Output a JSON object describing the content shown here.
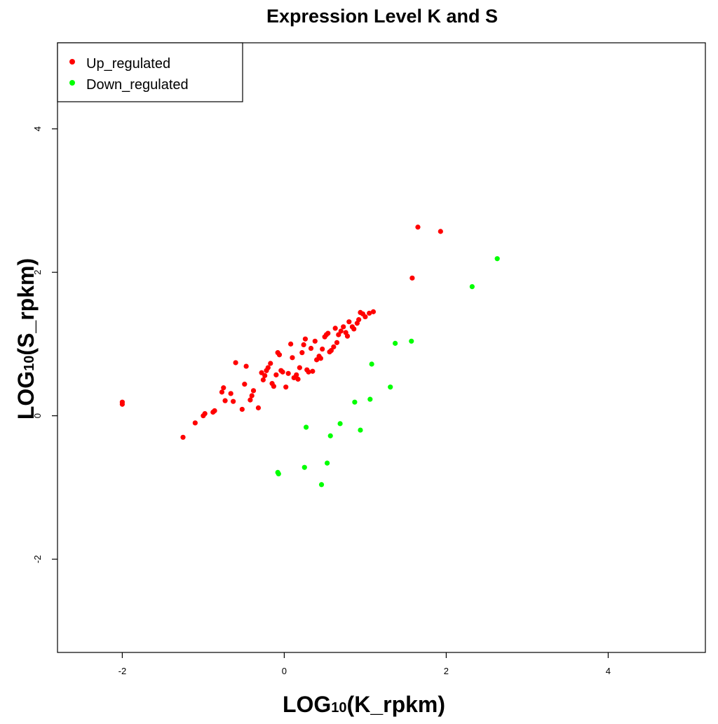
{
  "chart_data": {
    "type": "scatter",
    "title": "Expression Level K and S",
    "xlabel": {
      "prefix": "LOG",
      "sub": "10",
      "suffix": "(K_rpkm)"
    },
    "ylabel": {
      "prefix": "LOG",
      "sub": "10",
      "suffix": "(S_rpkm)"
    },
    "xlim": [
      -2.8,
      5.2
    ],
    "ylim": [
      -3.3,
      5.2
    ],
    "x_ticks": [
      -2,
      0,
      2,
      4
    ],
    "y_ticks": [
      -2,
      0,
      2,
      4
    ],
    "grid": false,
    "legend_position": "top-left",
    "series": [
      {
        "name": "Up_regulated",
        "color": "#ff0000",
        "points": [
          [
            -2.0,
            0.16
          ],
          [
            -2.0,
            0.19
          ],
          [
            -1.25,
            -0.3
          ],
          [
            -1.1,
            -0.1
          ],
          [
            -1.0,
            0.0
          ],
          [
            -0.98,
            0.03
          ],
          [
            -0.88,
            0.05
          ],
          [
            -0.86,
            0.07
          ],
          [
            -0.77,
            0.33
          ],
          [
            -0.75,
            0.39
          ],
          [
            -0.73,
            0.21
          ],
          [
            -0.66,
            0.31
          ],
          [
            -0.63,
            0.2
          ],
          [
            -0.6,
            0.74
          ],
          [
            -0.52,
            0.09
          ],
          [
            -0.49,
            0.44
          ],
          [
            -0.47,
            0.69
          ],
          [
            -0.42,
            0.22
          ],
          [
            -0.4,
            0.28
          ],
          [
            -0.38,
            0.35
          ],
          [
            -0.32,
            0.11
          ],
          [
            -0.28,
            0.6
          ],
          [
            -0.26,
            0.5
          ],
          [
            -0.24,
            0.56
          ],
          [
            -0.22,
            0.63
          ],
          [
            -0.2,
            0.67
          ],
          [
            -0.17,
            0.73
          ],
          [
            -0.15,
            0.45
          ],
          [
            -0.13,
            0.41
          ],
          [
            -0.1,
            0.57
          ],
          [
            -0.08,
            0.88
          ],
          [
            -0.06,
            0.85
          ],
          [
            -0.04,
            0.63
          ],
          [
            -0.02,
            0.61
          ],
          [
            0.02,
            0.4
          ],
          [
            0.05,
            0.59
          ],
          [
            0.08,
            1.0
          ],
          [
            0.1,
            0.81
          ],
          [
            0.12,
            0.53
          ],
          [
            0.15,
            0.57
          ],
          [
            0.17,
            0.51
          ],
          [
            0.19,
            0.67
          ],
          [
            0.22,
            0.88
          ],
          [
            0.24,
            0.99
          ],
          [
            0.26,
            1.07
          ],
          [
            0.28,
            0.64
          ],
          [
            0.3,
            0.61
          ],
          [
            0.33,
            0.94
          ],
          [
            0.35,
            0.62
          ],
          [
            0.38,
            1.04
          ],
          [
            0.4,
            0.78
          ],
          [
            0.43,
            0.83
          ],
          [
            0.45,
            0.8
          ],
          [
            0.47,
            0.93
          ],
          [
            0.5,
            1.1
          ],
          [
            0.52,
            1.13
          ],
          [
            0.54,
            1.15
          ],
          [
            0.56,
            0.89
          ],
          [
            0.58,
            0.91
          ],
          [
            0.61,
            0.96
          ],
          [
            0.63,
            1.22
          ],
          [
            0.65,
            1.02
          ],
          [
            0.67,
            1.13
          ],
          [
            0.7,
            1.18
          ],
          [
            0.73,
            1.24
          ],
          [
            0.76,
            1.16
          ],
          [
            0.78,
            1.11
          ],
          [
            0.8,
            1.31
          ],
          [
            0.84,
            1.24
          ],
          [
            0.86,
            1.21
          ],
          [
            0.9,
            1.29
          ],
          [
            0.92,
            1.34
          ],
          [
            0.94,
            1.44
          ],
          [
            0.97,
            1.42
          ],
          [
            1.0,
            1.38
          ],
          [
            1.05,
            1.43
          ],
          [
            1.1,
            1.45
          ],
          [
            1.58,
            1.92
          ],
          [
            1.65,
            2.63
          ],
          [
            1.93,
            2.57
          ]
        ]
      },
      {
        "name": "Down_regulated",
        "color": "#00ff00",
        "points": [
          [
            -0.08,
            -0.79
          ],
          [
            -0.07,
            -0.81
          ],
          [
            0.25,
            -0.72
          ],
          [
            0.27,
            -0.16
          ],
          [
            0.46,
            -0.96
          ],
          [
            0.53,
            -0.66
          ],
          [
            0.57,
            -0.28
          ],
          [
            0.69,
            -0.11
          ],
          [
            0.87,
            0.19
          ],
          [
            0.94,
            -0.2
          ],
          [
            1.06,
            0.23
          ],
          [
            1.08,
            0.72
          ],
          [
            1.31,
            0.4
          ],
          [
            1.37,
            1.01
          ],
          [
            1.57,
            1.04
          ],
          [
            2.32,
            1.8
          ],
          [
            2.63,
            2.19
          ]
        ]
      }
    ]
  }
}
